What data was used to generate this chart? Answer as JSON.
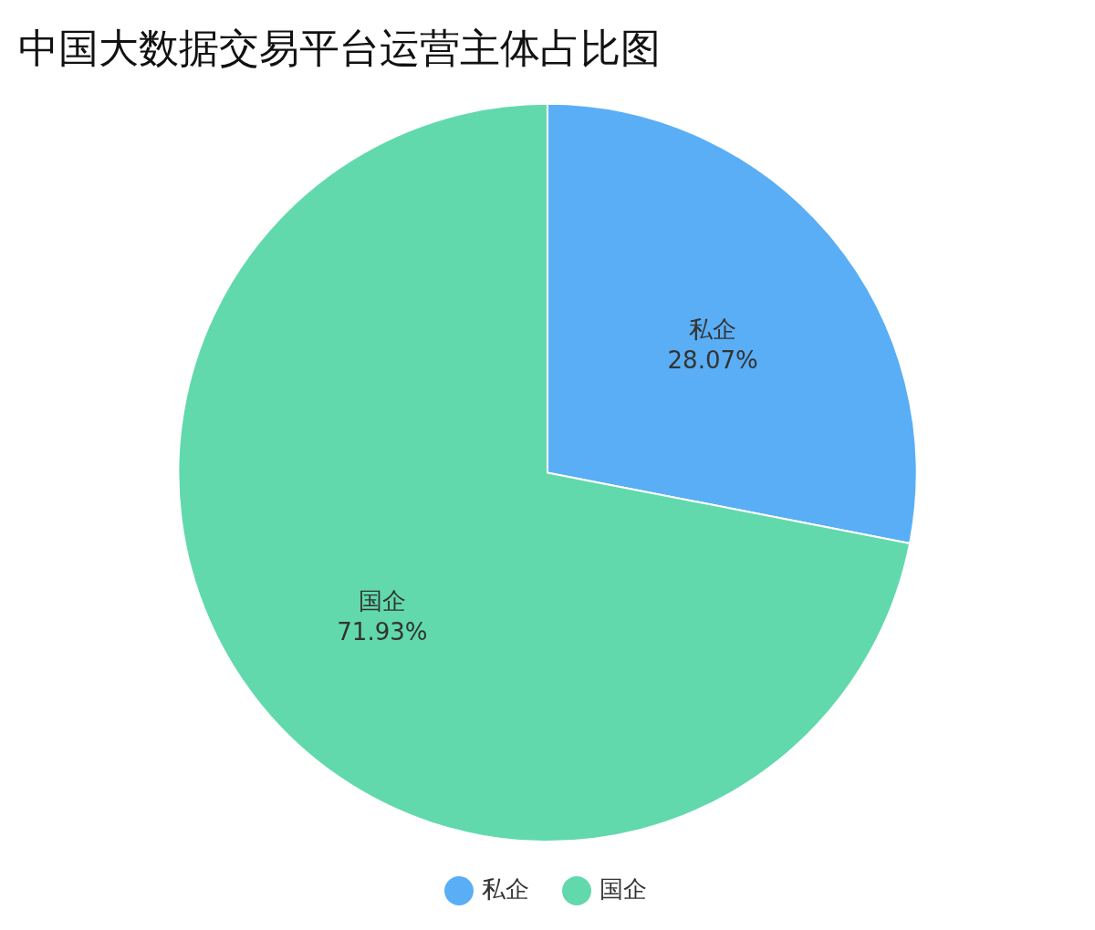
{
  "chart_data": {
    "type": "pie",
    "title": "中国大数据交易平台运营主体占比图",
    "categories": [
      "私企",
      "国企"
    ],
    "values": [
      28.07,
      71.93
    ],
    "value_labels": [
      "28.07%",
      "71.93%"
    ],
    "colors": [
      "#5aaef5",
      "#61d9ad"
    ],
    "legend": "bottom"
  }
}
